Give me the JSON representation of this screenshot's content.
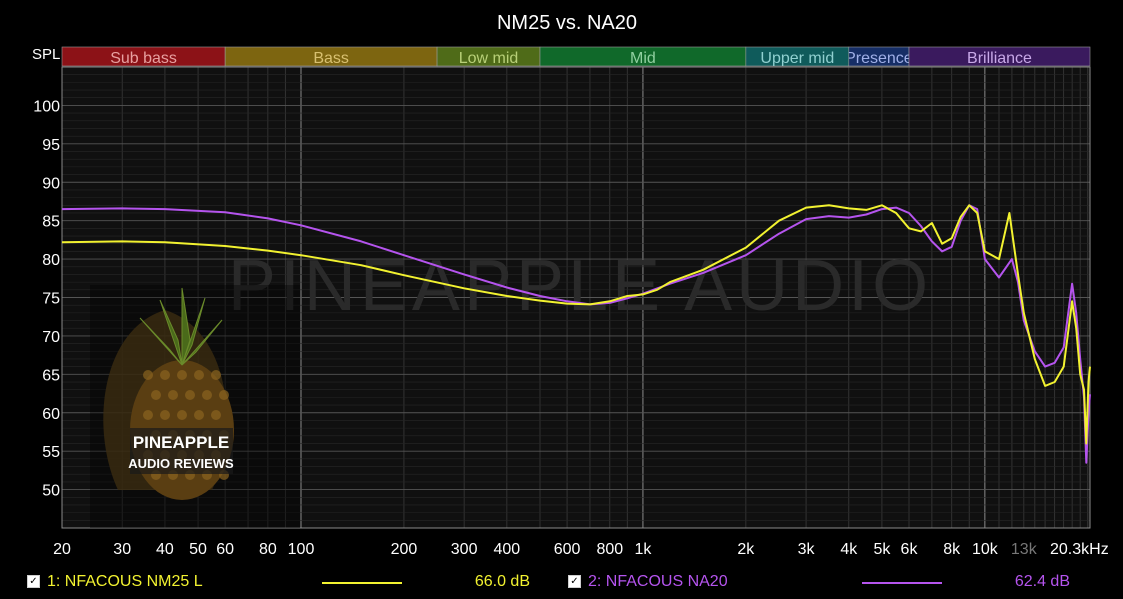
{
  "chart_data": {
    "type": "line",
    "title": "NM25 vs. NA20",
    "ylabel": "SPL",
    "xscale": "log",
    "xlim": [
      20,
      20300
    ],
    "ylim": [
      45,
      105
    ],
    "x_ticks": [
      {
        "value": 20,
        "label": "20"
      },
      {
        "value": 30,
        "label": "30"
      },
      {
        "value": 40,
        "label": "40"
      },
      {
        "value": 50,
        "label": "50"
      },
      {
        "value": 60,
        "label": "60"
      },
      {
        "value": 80,
        "label": "80"
      },
      {
        "value": 100,
        "label": "100"
      },
      {
        "value": 200,
        "label": "200"
      },
      {
        "value": 300,
        "label": "300"
      },
      {
        "value": 400,
        "label": "400"
      },
      {
        "value": 600,
        "label": "600"
      },
      {
        "value": 800,
        "label": "800"
      },
      {
        "value": 1000,
        "label": "1k"
      },
      {
        "value": 2000,
        "label": "2k"
      },
      {
        "value": 3000,
        "label": "3k"
      },
      {
        "value": 4000,
        "label": "4k"
      },
      {
        "value": 5000,
        "label": "5k"
      },
      {
        "value": 6000,
        "label": "6k"
      },
      {
        "value": 8000,
        "label": "8k"
      },
      {
        "value": 10000,
        "label": "10k"
      },
      {
        "value": 13000,
        "label": "13k"
      },
      {
        "value": 20300,
        "label": "20.3kHz"
      }
    ],
    "y_ticks": [
      50,
      55,
      60,
      65,
      70,
      75,
      80,
      85,
      90,
      95,
      100
    ],
    "bands": [
      {
        "label": "Sub bass",
        "from": 20,
        "to": 60,
        "color": "#8c1217",
        "text_color": "#e8a0a0"
      },
      {
        "label": "Bass",
        "from": 60,
        "to": 250,
        "color": "#7d6510",
        "text_color": "#d8c070"
      },
      {
        "label": "Low mid",
        "from": 250,
        "to": 500,
        "color": "#4f6b18",
        "text_color": "#b8d078"
      },
      {
        "label": "Mid",
        "from": 500,
        "to": 2000,
        "color": "#10692a",
        "text_color": "#90d0a0"
      },
      {
        "label": "Upper mid",
        "from": 2000,
        "to": 4000,
        "color": "#0f5b5b",
        "text_color": "#90d0d0"
      },
      {
        "label": "Presence",
        "from": 4000,
        "to": 6000,
        "color": "#162e66",
        "text_color": "#a0b0e8"
      },
      {
        "label": "Brilliance",
        "from": 6000,
        "to": 20300,
        "color": "#3a1a5e",
        "text_color": "#c8a8e8"
      }
    ],
    "grid": true,
    "legend_position": "bottom",
    "watermark_text": "PINEAPPLE AUDIO",
    "logo_text": [
      "PINEAPPLE",
      "AUDIO REVIEWS"
    ],
    "series": [
      {
        "name": "1: NFACOUS NM25 L",
        "color": "#f2f230",
        "value_label": "66.0 dB",
        "points": [
          [
            20,
            82.2
          ],
          [
            30,
            82.3
          ],
          [
            40,
            82.2
          ],
          [
            60,
            81.7
          ],
          [
            80,
            81.1
          ],
          [
            100,
            80.5
          ],
          [
            150,
            79.2
          ],
          [
            200,
            77.9
          ],
          [
            300,
            76.2
          ],
          [
            400,
            75.2
          ],
          [
            500,
            74.6
          ],
          [
            600,
            74.2
          ],
          [
            700,
            74.1
          ],
          [
            800,
            74.5
          ],
          [
            900,
            75.2
          ],
          [
            1000,
            75.4
          ],
          [
            1100,
            76.0
          ],
          [
            1200,
            77.0
          ],
          [
            1500,
            78.6
          ],
          [
            2000,
            81.5
          ],
          [
            2500,
            85.0
          ],
          [
            3000,
            86.7
          ],
          [
            3500,
            87.0
          ],
          [
            4000,
            86.6
          ],
          [
            4500,
            86.4
          ],
          [
            5000,
            87.0
          ],
          [
            5500,
            86.0
          ],
          [
            6000,
            84.0
          ],
          [
            6500,
            83.6
          ],
          [
            7000,
            84.7
          ],
          [
            7500,
            82.0
          ],
          [
            8000,
            82.7
          ],
          [
            8500,
            85.5
          ],
          [
            9000,
            87.0
          ],
          [
            9500,
            86.0
          ],
          [
            10000,
            81.0
          ],
          [
            11000,
            80.0
          ],
          [
            11800,
            86.0
          ],
          [
            12500,
            78.0
          ],
          [
            13000,
            73.0
          ],
          [
            14000,
            67.0
          ],
          [
            15000,
            63.5
          ],
          [
            16000,
            64.0
          ],
          [
            17000,
            66.0
          ],
          [
            18000,
            74.5
          ],
          [
            18500,
            71.0
          ],
          [
            19000,
            65.0
          ],
          [
            19500,
            63.0
          ],
          [
            19800,
            56.0
          ],
          [
            20100,
            64.0
          ],
          [
            20300,
            66.0
          ]
        ]
      },
      {
        "name": "2: NFACOUS NA20",
        "color": "#b554ee",
        "value_label": "62.4 dB",
        "points": [
          [
            20,
            86.5
          ],
          [
            30,
            86.6
          ],
          [
            40,
            86.5
          ],
          [
            60,
            86.1
          ],
          [
            80,
            85.3
          ],
          [
            100,
            84.4
          ],
          [
            150,
            82.3
          ],
          [
            200,
            80.5
          ],
          [
            300,
            78.0
          ],
          [
            400,
            76.3
          ],
          [
            500,
            75.2
          ],
          [
            600,
            74.5
          ],
          [
            700,
            74.1
          ],
          [
            800,
            74.3
          ],
          [
            900,
            74.9
          ],
          [
            1000,
            75.5
          ],
          [
            1200,
            76.8
          ],
          [
            1500,
            78.2
          ],
          [
            2000,
            80.5
          ],
          [
            2500,
            83.3
          ],
          [
            3000,
            85.2
          ],
          [
            3500,
            85.6
          ],
          [
            4000,
            85.4
          ],
          [
            4500,
            85.8
          ],
          [
            5000,
            86.5
          ],
          [
            5500,
            86.7
          ],
          [
            6000,
            86.0
          ],
          [
            6500,
            84.3
          ],
          [
            7000,
            82.3
          ],
          [
            7500,
            81.0
          ],
          [
            8000,
            81.6
          ],
          [
            8500,
            85.0
          ],
          [
            9000,
            87.0
          ],
          [
            9500,
            86.5
          ],
          [
            10000,
            80.0
          ],
          [
            11000,
            77.6
          ],
          [
            12000,
            80.0
          ],
          [
            12500,
            77.0
          ],
          [
            13000,
            72.0
          ],
          [
            14000,
            68.0
          ],
          [
            15000,
            66.0
          ],
          [
            16000,
            66.5
          ],
          [
            17000,
            68.5
          ],
          [
            18000,
            76.8
          ],
          [
            18500,
            73.0
          ],
          [
            19000,
            67.0
          ],
          [
            19500,
            62.0
          ],
          [
            19800,
            53.5
          ],
          [
            20100,
            60.0
          ],
          [
            20300,
            62.4
          ]
        ]
      }
    ]
  }
}
